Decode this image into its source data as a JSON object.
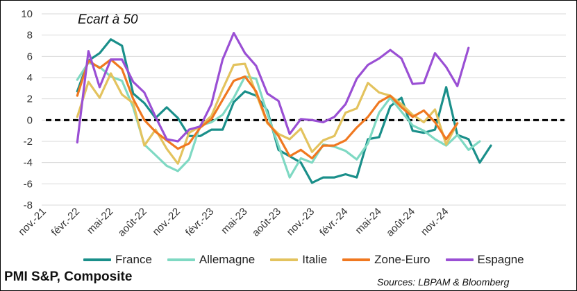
{
  "chart_data": {
    "type": "line",
    "title": "PMI S&P, Composite",
    "annotation": "Ecart à 50",
    "source": "Sources: LBPAM & Bloomberg",
    "ylim": [
      -8,
      10
    ],
    "yticks": [
      -8,
      -6,
      -4,
      -2,
      0,
      2,
      4,
      6,
      8,
      10
    ],
    "x_tick_labels": [
      "nov.-21",
      "févr.-22",
      "mai-22",
      "août-22",
      "nov.-22",
      "févr.-23",
      "mai-23",
      "août-23",
      "nov.-23",
      "févr.-24",
      "mai-24",
      "août-24",
      "nov.-24"
    ],
    "x_tick_every": 3,
    "x_start_index": 0,
    "reference_line": {
      "y": 0,
      "style": "dashed",
      "color": "#000000"
    },
    "grid": "horizontal",
    "legend_position": "bottom",
    "series": [
      {
        "name": "France",
        "color": "#1a8f8a",
        "start": 3,
        "values": [
          2.7,
          5.6,
          6.3,
          7.6,
          7.0,
          2.5,
          1.6,
          0.2,
          1.2,
          0.2,
          -1.5,
          -1.5,
          -0.9,
          -0.9,
          1.7,
          2.7,
          2.3,
          0.9,
          -2.8,
          -3.4,
          -4.0,
          -5.9,
          -5.4,
          -5.4,
          -5.1,
          -5.4,
          -1.8,
          -1.6,
          1.3,
          2.1,
          -1.0,
          -1.2,
          -0.9,
          3.1,
          -1.4,
          -1.8,
          -4.0,
          -2.4
        ]
      },
      {
        "name": "Allemagne",
        "color": "#7fd9c3",
        "start": 3,
        "values": [
          3.8,
          5.4,
          5.0,
          4.1,
          3.7,
          1.2,
          -2.3,
          -3.3,
          -4.3,
          -4.8,
          -3.7,
          -0.5,
          -0.2,
          0.5,
          2.1,
          4.1,
          3.9,
          0.6,
          -2.4,
          -5.4,
          -3.6,
          -4.0,
          -2.3,
          -2.5,
          -2.9,
          -3.7,
          -2.2,
          0.7,
          2.1,
          0.8,
          -0.5,
          -1.0,
          -1.8,
          -2.4,
          -1.4,
          -2.8,
          -2.0
        ]
      },
      {
        "name": "Italie",
        "color": "#e3c35e",
        "start": 3,
        "values": [
          0.3,
          3.6,
          2.1,
          4.4,
          2.4,
          1.6,
          -2.4,
          -0.9,
          -2.7,
          -4.1,
          -1.2,
          -0.6,
          0.4,
          2.9,
          5.2,
          5.3,
          2.5,
          -0.3,
          -1.3,
          -1.8,
          -0.8,
          -3.0,
          -1.9,
          -1.5,
          0.7,
          1.1,
          3.5,
          2.6,
          2.3,
          1.5,
          0.5,
          -0.2,
          1.0,
          -2.3,
          -0.3
        ]
      },
      {
        "name": "Zone-Euro",
        "color": "#f07820",
        "start": 3,
        "values": [
          2.3,
          5.6,
          4.9,
          5.7,
          4.8,
          2.0,
          0.0,
          -1.1,
          -1.9,
          -2.7,
          -2.2,
          -0.7,
          0.1,
          1.9,
          3.7,
          4.1,
          2.7,
          -0.2,
          -1.5,
          -3.4,
          -2.8,
          -3.6,
          -2.4,
          -2.4,
          -1.9,
          -0.7,
          0.3,
          1.7,
          2.3,
          1.2,
          0.3,
          0.9,
          -0.2,
          -1.8,
          -0.3
        ]
      },
      {
        "name": "Espagne",
        "color": "#9a4fd4",
        "start": 3,
        "values": [
          -2.1,
          6.5,
          3.1,
          5.7,
          5.7,
          3.6,
          2.6,
          0.3,
          -1.8,
          -2.0,
          -0.9,
          -0.6,
          1.5,
          5.7,
          8.2,
          6.3,
          5.1,
          2.5,
          1.8,
          -1.3,
          0.1,
          0.0,
          -0.2,
          0.3,
          1.5,
          3.9,
          5.2,
          5.8,
          6.6,
          5.8,
          3.4,
          3.5,
          6.3,
          5.0,
          3.2,
          6.8
        ]
      }
    ]
  }
}
